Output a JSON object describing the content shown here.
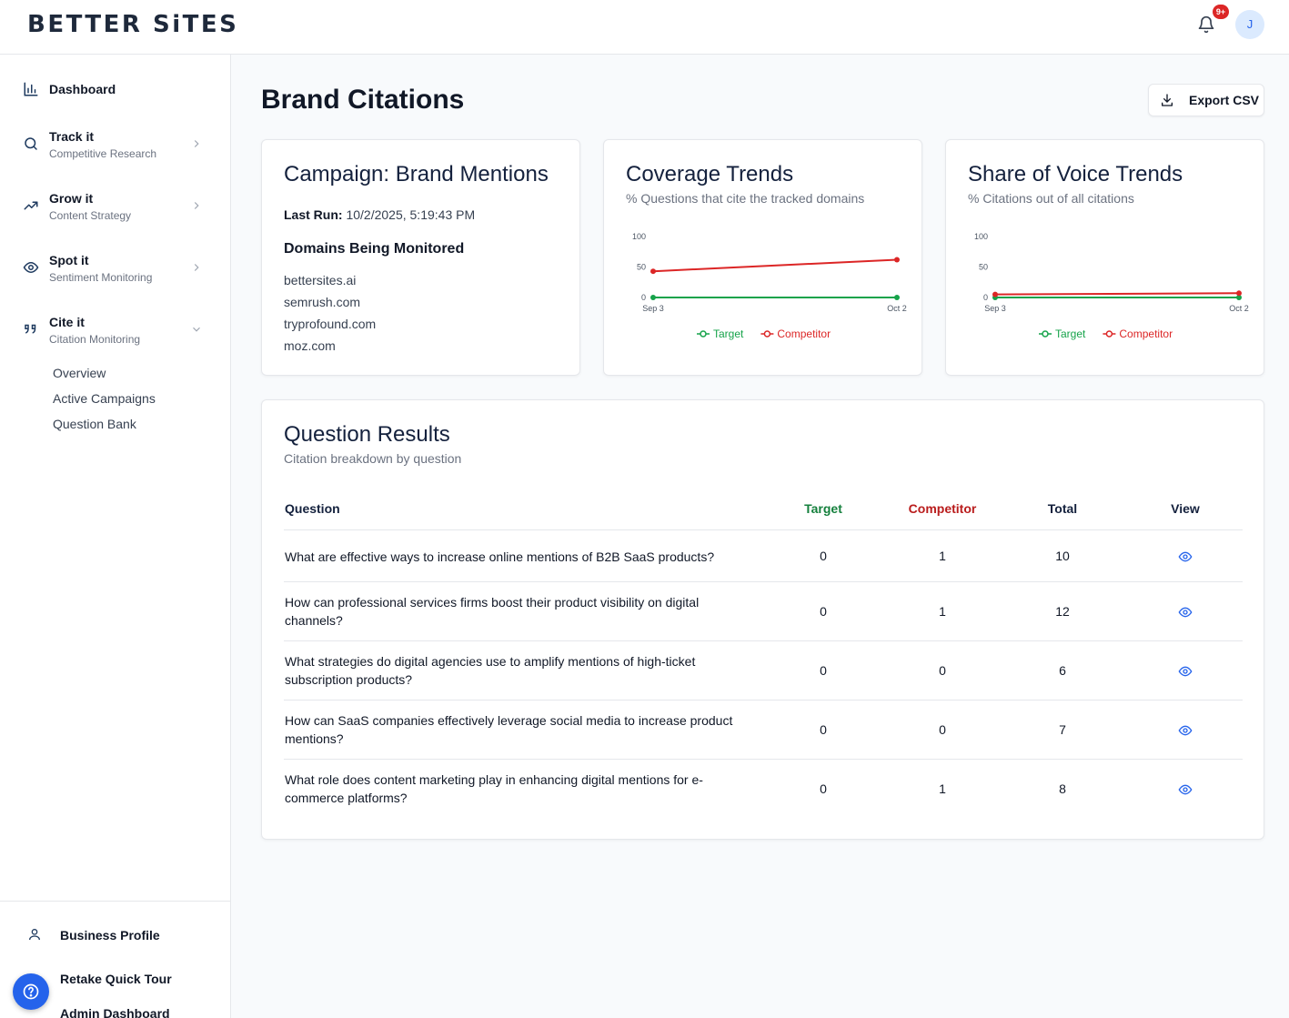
{
  "header": {
    "logo": "BETTER SiTES",
    "notification_count": "9+",
    "avatar_initial": "J"
  },
  "sidebar": {
    "dashboard": "Dashboard",
    "items": [
      {
        "title": "Track it",
        "subtitle": "Competitive Research",
        "icon": "search-icon"
      },
      {
        "title": "Grow it",
        "subtitle": "Content Strategy",
        "icon": "trending-up-icon"
      },
      {
        "title": "Spot it",
        "subtitle": "Sentiment Monitoring",
        "icon": "eye-icon"
      },
      {
        "title": "Cite it",
        "subtitle": "Citation Monitoring",
        "icon": "quote-icon"
      }
    ],
    "cite_subitems": [
      "Overview",
      "Active Campaigns",
      "Question Bank"
    ],
    "footer": [
      "Business Profile",
      "Retake Quick Tour",
      "Admin Dashboard"
    ]
  },
  "page": {
    "title": "Brand Citations",
    "export_label": "Export CSV"
  },
  "campaign": {
    "title": "Campaign: Brand Mentions",
    "last_run_label": "Last Run:",
    "last_run_value": "10/2/2025, 5:19:43 PM",
    "domains_heading": "Domains Being Monitored",
    "domains": [
      "bettersites.ai",
      "semrush.com",
      "tryprofound.com",
      "moz.com"
    ]
  },
  "coverage": {
    "title": "Coverage Trends",
    "subtitle": "% Questions that cite the tracked domains"
  },
  "sov": {
    "title": "Share of Voice Trends",
    "subtitle": "% Citations out of all citations"
  },
  "chart_data": [
    {
      "type": "line",
      "title": "Coverage Trends",
      "x": [
        "Sep 3",
        "Oct 2"
      ],
      "yticks": [
        "0",
        "50",
        "100"
      ],
      "ylim": [
        0,
        100
      ],
      "series": [
        {
          "name": "Target",
          "values": [
            0,
            0
          ],
          "color": "#16a34a"
        },
        {
          "name": "Competitor",
          "values": [
            43,
            62
          ],
          "color": "#dc2626"
        }
      ],
      "legend": "bottom-center"
    },
    {
      "type": "line",
      "title": "Share of Voice Trends",
      "x": [
        "Sep 3",
        "Oct 2"
      ],
      "yticks": [
        "0",
        "50",
        "100"
      ],
      "ylim": [
        0,
        100
      ],
      "series": [
        {
          "name": "Target",
          "values": [
            0,
            0
          ],
          "color": "#16a34a"
        },
        {
          "name": "Competitor",
          "values": [
            5,
            7
          ],
          "color": "#dc2626"
        }
      ],
      "legend": "bottom-center"
    }
  ],
  "results": {
    "title": "Question Results",
    "subtitle": "Citation breakdown by question",
    "columns": [
      "Question",
      "Target",
      "Competitor",
      "Total",
      "View"
    ],
    "rows": [
      {
        "question": "What are effective ways to increase online mentions of B2B SaaS products?",
        "target": "0",
        "competitor": "1",
        "total": "10"
      },
      {
        "question": "How can professional services firms boost their product visibility on digital channels?",
        "target": "0",
        "competitor": "1",
        "total": "12"
      },
      {
        "question": "What strategies do digital agencies use to amplify mentions of high-ticket subscription products?",
        "target": "0",
        "competitor": "0",
        "total": "6"
      },
      {
        "question": "How can SaaS companies effectively leverage social media to increase product mentions?",
        "target": "0",
        "competitor": "0",
        "total": "7"
      },
      {
        "question": "What role does content marketing play in enhancing digital mentions for e-commerce platforms?",
        "target": "0",
        "competitor": "1",
        "total": "8"
      }
    ]
  },
  "colors": {
    "target": "#16a34a",
    "competitor": "#dc2626",
    "accent": "#2563eb"
  }
}
